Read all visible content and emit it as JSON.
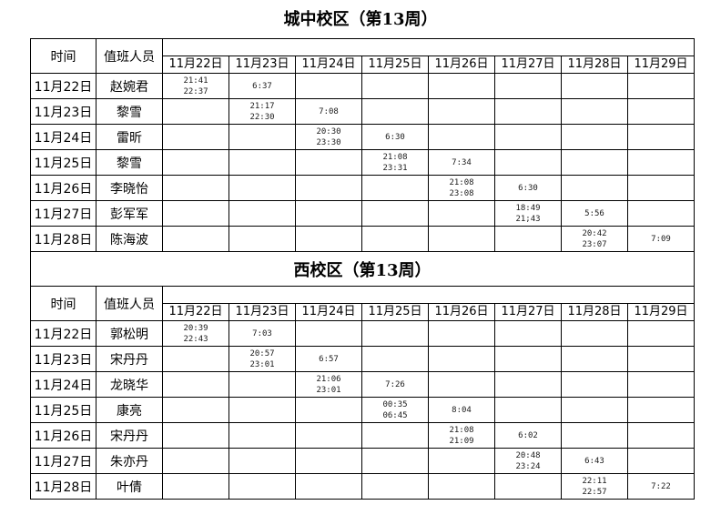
{
  "title": "城中校区（第13周）",
  "header": {
    "time": "时间",
    "person": "值班人员",
    "dates": [
      "11月22日",
      "11月23日",
      "11月24日",
      "11月25日",
      "11月26日",
      "11月27日",
      "11月28日",
      "11月29日"
    ]
  },
  "sections": [
    {
      "title": "城中校区（第13周）",
      "rows": [
        {
          "date": "11月22日",
          "person": "赵婉君",
          "cells": [
            [
              "21:41",
              "22:37"
            ],
            [
              "6:37"
            ],
            [],
            [],
            [],
            [],
            [],
            []
          ]
        },
        {
          "date": "11月23日",
          "person": "黎雪",
          "cells": [
            [],
            [
              "21:17",
              "22:30"
            ],
            [
              "7:08"
            ],
            [],
            [],
            [],
            [],
            []
          ]
        },
        {
          "date": "11月24日",
          "person": "雷昕",
          "cells": [
            [],
            [],
            [
              "20:30",
              "23:30"
            ],
            [
              "6:30"
            ],
            [],
            [],
            [],
            []
          ]
        },
        {
          "date": "11月25日",
          "person": "黎雪",
          "cells": [
            [],
            [],
            [],
            [
              "21:08",
              "23:31"
            ],
            [
              "7:34"
            ],
            [],
            [],
            []
          ]
        },
        {
          "date": "11月26日",
          "person": "李晓怡",
          "cells": [
            [],
            [],
            [],
            [],
            [
              "21:08",
              "23:08"
            ],
            [
              "6:30"
            ],
            [],
            []
          ]
        },
        {
          "date": "11月27日",
          "person": "彭军军",
          "cells": [
            [],
            [],
            [],
            [],
            [],
            [
              "18:49",
              "21;43"
            ],
            [
              "5:56"
            ],
            []
          ]
        },
        {
          "date": "11月28日",
          "person": "陈海波",
          "cells": [
            [],
            [],
            [],
            [],
            [],
            [],
            [
              "20:42",
              "23:07"
            ],
            [
              "7:09"
            ]
          ]
        }
      ]
    },
    {
      "title": "西校区（第13周）",
      "rows": [
        {
          "date": "11月22日",
          "person": "郭松明",
          "cells": [
            [
              "20:39",
              "22:43"
            ],
            [
              "7:03"
            ],
            [],
            [],
            [],
            [],
            [],
            []
          ]
        },
        {
          "date": "11月23日",
          "person": "宋丹丹",
          "cells": [
            [],
            [
              "20:57",
              "23:01"
            ],
            [
              "6:57"
            ],
            [],
            [],
            [],
            [],
            []
          ]
        },
        {
          "date": "11月24日",
          "person": "龙晓华",
          "cells": [
            [],
            [],
            [
              "21:06",
              "23:01"
            ],
            [
              "7:26"
            ],
            [],
            [],
            [],
            []
          ]
        },
        {
          "date": "11月25日",
          "person": "康亮",
          "cells": [
            [],
            [],
            [],
            [
              "00:35",
              "06:45"
            ],
            [
              "8:04"
            ],
            [],
            [],
            []
          ]
        },
        {
          "date": "11月26日",
          "person": "宋丹丹",
          "cells": [
            [],
            [],
            [],
            [],
            [
              "21:08",
              "21:09"
            ],
            [
              "6:02"
            ],
            [],
            []
          ]
        },
        {
          "date": "11月27日",
          "person": "朱亦丹",
          "cells": [
            [],
            [],
            [],
            [],
            [],
            [
              "20:48",
              "23:24"
            ],
            [
              "6:43"
            ],
            []
          ]
        },
        {
          "date": "11月28日",
          "person": "叶倩",
          "cells": [
            [],
            [],
            [],
            [],
            [],
            [],
            [
              "22:11",
              "22:57"
            ],
            [
              "7:22"
            ]
          ]
        }
      ]
    }
  ]
}
